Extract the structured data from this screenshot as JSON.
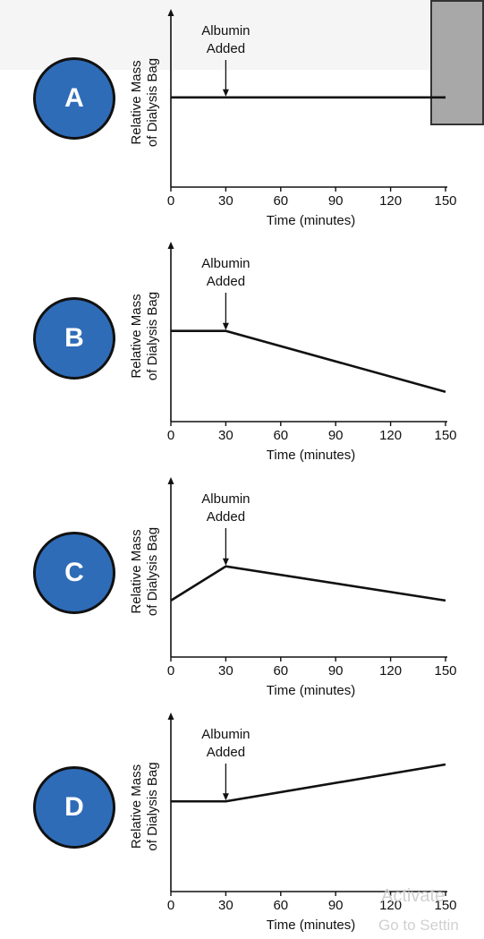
{
  "chart_data": [
    {
      "type": "line",
      "panel_label": "A",
      "xlabel": "Time (minutes)",
      "ylabel": [
        "Relative Mass",
        "of Dialysis Bag"
      ],
      "annotation": [
        "Albumin",
        "Added"
      ],
      "annotation_x": 30,
      "x_ticks": [
        0,
        30,
        60,
        90,
        120,
        150
      ],
      "xlim": [
        0,
        150
      ],
      "ylim": [
        0,
        1
      ],
      "series": [
        {
          "x": [
            0,
            30,
            150
          ],
          "y": [
            0.55,
            0.55,
            0.55
          ]
        }
      ]
    },
    {
      "type": "line",
      "panel_label": "B",
      "xlabel": "Time (minutes)",
      "ylabel": [
        "Relative Mass",
        "of Dialysis Bag"
      ],
      "annotation": [
        "Albumin",
        "Added"
      ],
      "annotation_x": 30,
      "x_ticks": [
        0,
        30,
        60,
        90,
        120,
        150
      ],
      "xlim": [
        0,
        150
      ],
      "ylim": [
        0,
        1
      ],
      "series": [
        {
          "x": [
            0,
            30,
            150
          ],
          "y": [
            0.55,
            0.55,
            0.14
          ]
        }
      ]
    },
    {
      "type": "line",
      "panel_label": "C",
      "xlabel": "Time (minutes)",
      "ylabel": [
        "Relative Mass",
        "of Dialysis Bag"
      ],
      "annotation": [
        "Albumin",
        "Added"
      ],
      "annotation_x": 30,
      "x_ticks": [
        0,
        30,
        60,
        90,
        120,
        150
      ],
      "xlim": [
        0,
        150
      ],
      "ylim": [
        0,
        1
      ],
      "series": [
        {
          "x": [
            0,
            30,
            150
          ],
          "y": [
            0.32,
            0.55,
            0.32
          ]
        }
      ]
    },
    {
      "type": "line",
      "panel_label": "D",
      "xlabel": "Time (minutes)",
      "ylabel": [
        "Relative Mass",
        "of Dialysis Bag"
      ],
      "annotation": [
        "Albumin",
        "Added"
      ],
      "annotation_x": 30,
      "x_ticks": [
        0,
        30,
        60,
        90,
        120,
        150
      ],
      "xlim": [
        0,
        150
      ],
      "ylim": [
        0,
        1
      ],
      "series": [
        {
          "x": [
            0,
            30,
            150
          ],
          "y": [
            0.55,
            0.55,
            0.8
          ]
        }
      ]
    }
  ],
  "watermark": {
    "line1": "Activate",
    "line2": "Go to Settin"
  }
}
